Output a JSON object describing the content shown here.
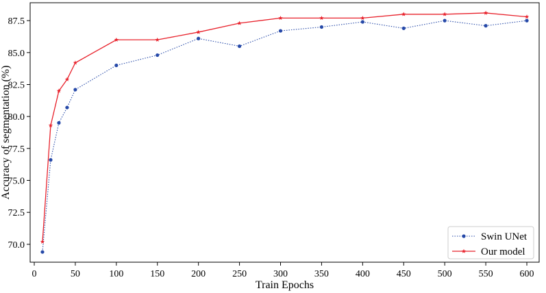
{
  "chart_data": {
    "type": "line",
    "title": "",
    "xlabel": "Train Epochs",
    "ylabel": "Accuracy of segmentation (%)",
    "xlim": [
      -5,
      615
    ],
    "ylim": [
      68.6,
      88.9
    ],
    "xticks": [
      0,
      50,
      100,
      150,
      200,
      250,
      300,
      350,
      400,
      450,
      500,
      550,
      600
    ],
    "xtick_labels": [
      "0",
      "50",
      "100",
      "150",
      "200",
      "250",
      "300",
      "350",
      "400",
      "450",
      "500",
      "550",
      "600"
    ],
    "yticks": [
      70.0,
      72.5,
      75.0,
      77.5,
      80.0,
      82.5,
      85.0,
      87.5
    ],
    "ytick_labels": [
      "70.0",
      "72.5",
      "75.0",
      "77.5",
      "80.0",
      "82.5",
      "85.0",
      "87.5"
    ],
    "grid": false,
    "legend_position": "lower-right",
    "series": [
      {
        "name": "Swin UNet",
        "color": "#2649a8",
        "line_style": "dotted",
        "marker": "circle",
        "x": [
          10,
          20,
          30,
          40,
          50,
          100,
          150,
          200,
          250,
          300,
          350,
          400,
          450,
          500,
          550,
          600
        ],
        "y": [
          69.4,
          76.6,
          79.5,
          80.7,
          82.1,
          84.0,
          84.8,
          86.1,
          85.5,
          86.7,
          87.0,
          87.4,
          86.9,
          87.5,
          87.1,
          87.5
        ]
      },
      {
        "name": "Our model",
        "color": "#e8202a",
        "line_style": "solid",
        "marker": "star",
        "x": [
          10,
          20,
          30,
          40,
          50,
          100,
          150,
          200,
          250,
          300,
          350,
          400,
          450,
          500,
          550,
          600
        ],
        "y": [
          70.2,
          79.3,
          82.0,
          82.9,
          84.2,
          86.0,
          86.0,
          86.6,
          87.3,
          87.7,
          87.7,
          87.7,
          88.0,
          88.0,
          88.1,
          87.8
        ]
      }
    ]
  }
}
